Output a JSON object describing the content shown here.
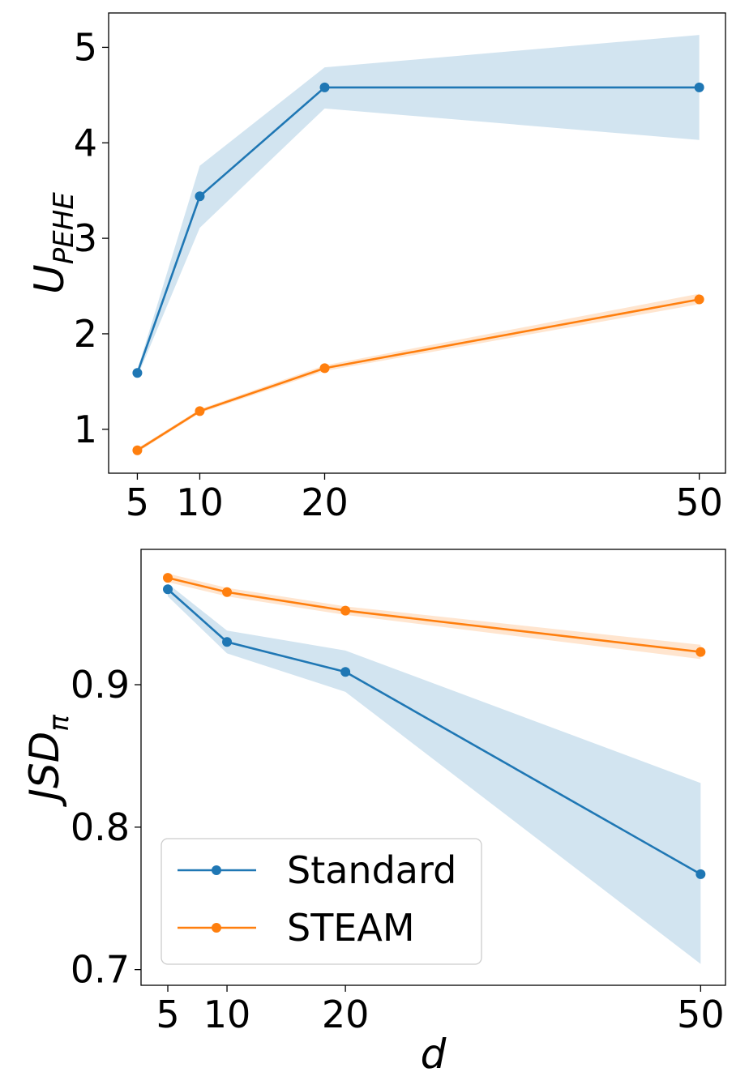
{
  "chart_data": [
    {
      "type": "line",
      "xlabel": "",
      "ylabel": "U",
      "ylabel_sub": "PEHE",
      "x": [
        5,
        10,
        20,
        50
      ],
      "xticks": [
        "5",
        "10",
        "20",
        "50"
      ],
      "yticks": [
        "1",
        "2",
        "3",
        "4",
        "5"
      ],
      "ytick_values": [
        1,
        2,
        3,
        4,
        5
      ],
      "xlim": [
        2.7,
        52.1
      ],
      "ylim": [
        0.54,
        5.36
      ],
      "grid": false,
      "series": [
        {
          "name": "Standard",
          "color": "#1f77b4",
          "values": [
            1.59,
            3.44,
            4.58,
            4.58
          ],
          "lower": [
            1.55,
            3.11,
            4.36,
            4.03
          ],
          "upper": [
            1.62,
            3.76,
            4.79,
            5.13
          ]
        },
        {
          "name": "STEAM",
          "color": "#ff7f0e",
          "values": [
            0.78,
            1.19,
            1.64,
            2.36
          ],
          "lower": [
            0.76,
            1.17,
            1.61,
            2.31
          ],
          "upper": [
            0.8,
            1.21,
            1.67,
            2.42
          ]
        }
      ]
    },
    {
      "type": "line",
      "xlabel": "d",
      "ylabel": "JSD",
      "ylabel_sub": "π",
      "x": [
        5,
        10,
        20,
        50
      ],
      "xticks": [
        "5",
        "10",
        "20",
        "50"
      ],
      "yticks": [
        "0.7",
        "0.8",
        "0.9"
      ],
      "ytick_values": [
        0.7,
        0.8,
        0.9
      ],
      "xlim": [
        2.74,
        52.1
      ],
      "ylim": [
        0.689,
        0.995
      ],
      "grid": false,
      "legend": {
        "placement": "lower-left",
        "entries": [
          "Standard",
          "STEAM"
        ]
      },
      "series": [
        {
          "name": "Standard",
          "color": "#1f77b4",
          "values": [
            0.967,
            0.93,
            0.909,
            0.767
          ],
          "lower": [
            0.962,
            0.922,
            0.895,
            0.704
          ],
          "upper": [
            0.971,
            0.938,
            0.924,
            0.831
          ]
        },
        {
          "name": "STEAM",
          "color": "#ff7f0e",
          "values": [
            0.975,
            0.965,
            0.952,
            0.923
          ],
          "lower": [
            0.972,
            0.962,
            0.949,
            0.918
          ],
          "upper": [
            0.978,
            0.968,
            0.955,
            0.928
          ]
        }
      ]
    }
  ]
}
